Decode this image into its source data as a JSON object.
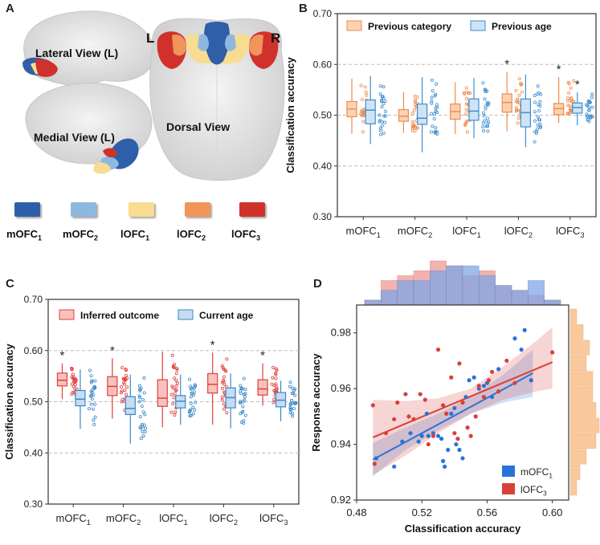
{
  "panels": {
    "a": "A",
    "b": "B",
    "c": "C",
    "d": "D"
  },
  "brain": {
    "lateral_view": "Lateral View (L)",
    "medial_view": "Medial View (L)",
    "dorsal_view": "Dorsal View",
    "left_mark": "L",
    "right_mark": "R",
    "legend": [
      {
        "label": "mOFC",
        "sub": "1",
        "color": "#2f5fa8"
      },
      {
        "label": "mOFC",
        "sub": "2",
        "color": "#8fb8df"
      },
      {
        "label": "lOFC",
        "sub": "1",
        "color": "#f7dc92"
      },
      {
        "label": "lOFC",
        "sub": "2",
        "color": "#f2955a"
      },
      {
        "label": "lOFC",
        "sub": "3",
        "color": "#d0312b"
      }
    ]
  },
  "colors": {
    "orange": "#f08a4b",
    "orange_fill": "#fbd3b3",
    "blue": "#3d8ed0",
    "blue_fill": "#cfe3f5",
    "red": "#e0403a",
    "red_fill": "#f7c2bd",
    "blue2": "#3b88c9",
    "blue2_fill": "#c6dcf0",
    "scatter_blue": "#2a73d6",
    "scatter_red": "#d8403a"
  },
  "chart_data": [
    {
      "panel": "B",
      "type": "box",
      "ylabel": "Classification accuracy",
      "ylim": [
        0.3,
        0.7
      ],
      "yticks": [
        "0.30",
        "0.40",
        "0.50",
        "0.60",
        "0.70"
      ],
      "gridlines": [
        0.4,
        0.5,
        0.6
      ],
      "categories": [
        {
          "name": "mOFC",
          "sub": "1"
        },
        {
          "name": "mOFC",
          "sub": "2"
        },
        {
          "name": "lOFC",
          "sub": "1"
        },
        {
          "name": "lOFC",
          "sub": "2"
        },
        {
          "name": "lOFC",
          "sub": "3"
        }
      ],
      "series": [
        {
          "name": "Previous category",
          "color_key": "orange",
          "boxes": [
            {
              "q1": 0.497,
              "med": 0.512,
              "q3": 0.527,
              "min": 0.463,
              "max": 0.572
            },
            {
              "q1": 0.488,
              "med": 0.498,
              "q3": 0.511,
              "min": 0.465,
              "max": 0.546
            },
            {
              "q1": 0.492,
              "med": 0.507,
              "q3": 0.522,
              "min": 0.463,
              "max": 0.565
            },
            {
              "q1": 0.506,
              "med": 0.525,
              "q3": 0.542,
              "min": 0.468,
              "max": 0.585
            },
            {
              "q1": 0.501,
              "med": 0.513,
              "q3": 0.523,
              "min": 0.485,
              "max": 0.575
            }
          ],
          "stars": [
            false,
            false,
            false,
            true,
            true
          ]
        },
        {
          "name": "Previous age",
          "color_key": "blue",
          "boxes": [
            {
              "q1": 0.483,
              "med": 0.51,
              "q3": 0.53,
              "min": 0.443,
              "max": 0.577
            },
            {
              "q1": 0.482,
              "med": 0.494,
              "q3": 0.522,
              "min": 0.427,
              "max": 0.575
            },
            {
              "q1": 0.49,
              "med": 0.508,
              "q3": 0.532,
              "min": 0.455,
              "max": 0.573
            },
            {
              "q1": 0.477,
              "med": 0.505,
              "q3": 0.532,
              "min": 0.437,
              "max": 0.58
            },
            {
              "q1": 0.504,
              "med": 0.515,
              "q3": 0.524,
              "min": 0.48,
              "max": 0.545
            }
          ],
          "stars": [
            false,
            false,
            false,
            false,
            true
          ]
        }
      ]
    },
    {
      "panel": "C",
      "type": "box",
      "ylabel": "Classification accuracy",
      "ylim": [
        0.3,
        0.7
      ],
      "yticks": [
        "0.30",
        "0.40",
        "0.50",
        "0.60",
        "0.70"
      ],
      "gridlines": [
        0.4,
        0.5,
        0.6
      ],
      "categories": [
        {
          "name": "mOFC",
          "sub": "1"
        },
        {
          "name": "mOFC",
          "sub": "2"
        },
        {
          "name": "lOFC",
          "sub": "1"
        },
        {
          "name": "lOFC",
          "sub": "2"
        },
        {
          "name": "lOFC",
          "sub": "3"
        }
      ],
      "series": [
        {
          "name": "Inferred outcome",
          "color_key": "red",
          "boxes": [
            {
              "q1": 0.531,
              "med": 0.542,
              "q3": 0.556,
              "min": 0.505,
              "max": 0.575
            },
            {
              "q1": 0.512,
              "med": 0.53,
              "q3": 0.549,
              "min": 0.467,
              "max": 0.585
            },
            {
              "q1": 0.491,
              "med": 0.507,
              "q3": 0.543,
              "min": 0.45,
              "max": 0.598
            },
            {
              "q1": 0.517,
              "med": 0.534,
              "q3": 0.555,
              "min": 0.455,
              "max": 0.596
            },
            {
              "q1": 0.513,
              "med": 0.525,
              "q3": 0.543,
              "min": 0.492,
              "max": 0.575
            }
          ],
          "stars": [
            true,
            true,
            false,
            true,
            true
          ]
        },
        {
          "name": "Current age",
          "color_key": "blue2",
          "boxes": [
            {
              "q1": 0.492,
              "med": 0.505,
              "q3": 0.522,
              "min": 0.447,
              "max": 0.563
            },
            {
              "q1": 0.475,
              "med": 0.487,
              "q3": 0.51,
              "min": 0.418,
              "max": 0.553
            },
            {
              "q1": 0.488,
              "med": 0.501,
              "q3": 0.512,
              "min": 0.455,
              "max": 0.553
            },
            {
              "q1": 0.488,
              "med": 0.508,
              "q3": 0.527,
              "min": 0.448,
              "max": 0.555
            },
            {
              "q1": 0.49,
              "med": 0.503,
              "q3": 0.518,
              "min": 0.462,
              "max": 0.541
            }
          ],
          "stars": [
            false,
            false,
            false,
            false,
            false
          ]
        }
      ]
    },
    {
      "panel": "D",
      "type": "scatter",
      "xlabel": "Classification accuracy",
      "ylabel": "Response accuracy",
      "xlim": [
        0.48,
        0.61
      ],
      "ylim": [
        0.92,
        0.99
      ],
      "xticks": [
        "0.48",
        "0.52",
        "0.56",
        "0.60"
      ],
      "yticks": [
        "0.92",
        "0.94",
        "0.96",
        "0.98"
      ],
      "series": [
        {
          "name": "mOFC",
          "sub": "1",
          "color_key": "scatter_blue",
          "fit": {
            "x0": 0.49,
            "y0": 0.9345,
            "x1": 0.588,
            "y1": 0.9655
          },
          "band": [
            [
              0.49,
              0.9285,
              0.9405
            ],
            [
              0.51,
              0.938,
              0.946
            ],
            [
              0.53,
              0.945,
              0.951
            ],
            [
              0.55,
              0.951,
              0.957
            ],
            [
              0.57,
              0.955,
              0.965
            ],
            [
              0.588,
              0.957,
              0.974
            ]
          ],
          "points": [
            [
              0.492,
              0.935
            ],
            [
              0.503,
              0.932
            ],
            [
              0.508,
              0.941
            ],
            [
              0.513,
              0.944
            ],
            [
              0.518,
              0.941
            ],
            [
              0.52,
              0.943
            ],
            [
              0.523,
              0.951
            ],
            [
              0.524,
              0.943
            ],
            [
              0.527,
              0.944
            ],
            [
              0.53,
              0.943
            ],
            [
              0.532,
              0.942
            ],
            [
              0.533,
              0.934
            ],
            [
              0.534,
              0.932
            ],
            [
              0.536,
              0.938
            ],
            [
              0.538,
              0.951
            ],
            [
              0.54,
              0.953
            ],
            [
              0.541,
              0.94
            ],
            [
              0.543,
              0.938
            ],
            [
              0.545,
              0.935
            ],
            [
              0.547,
              0.957
            ],
            [
              0.549,
              0.963
            ],
            [
              0.552,
              0.964
            ],
            [
              0.555,
              0.96
            ],
            [
              0.558,
              0.961
            ],
            [
              0.56,
              0.962
            ],
            [
              0.563,
              0.957
            ],
            [
              0.567,
              0.967
            ],
            [
              0.577,
              0.978
            ],
            [
              0.581,
              0.974
            ],
            [
              0.583,
              0.981
            ],
            [
              0.587,
              0.963
            ]
          ]
        },
        {
          "name": "lOFC",
          "sub": "3",
          "color_key": "scatter_red",
          "fit": {
            "x0": 0.49,
            "y0": 0.9425,
            "x1": 0.6,
            "y1": 0.9695
          },
          "band": [
            [
              0.49,
              0.929,
              0.956
            ],
            [
              0.51,
              0.936,
              0.9555
            ],
            [
              0.53,
              0.944,
              0.9565
            ],
            [
              0.55,
              0.951,
              0.96
            ],
            [
              0.57,
              0.956,
              0.968
            ],
            [
              0.59,
              0.959,
              0.977
            ],
            [
              0.6,
              0.96,
              0.982
            ]
          ],
          "points": [
            [
              0.49,
              0.954
            ],
            [
              0.491,
              0.933
            ],
            [
              0.498,
              0.944
            ],
            [
              0.503,
              0.949
            ],
            [
              0.505,
              0.955
            ],
            [
              0.51,
              0.958
            ],
            [
              0.512,
              0.95
            ],
            [
              0.515,
              0.949
            ],
            [
              0.519,
              0.958
            ],
            [
              0.522,
              0.956
            ],
            [
              0.524,
              0.94
            ],
            [
              0.527,
              0.943
            ],
            [
              0.53,
              0.974
            ],
            [
              0.533,
              0.954
            ],
            [
              0.535,
              0.951
            ],
            [
              0.538,
              0.964
            ],
            [
              0.54,
              0.944
            ],
            [
              0.542,
              0.942
            ],
            [
              0.543,
              0.969
            ],
            [
              0.545,
              0.955
            ],
            [
              0.548,
              0.946
            ],
            [
              0.55,
              0.943
            ],
            [
              0.553,
              0.95
            ],
            [
              0.555,
              0.961
            ],
            [
              0.558,
              0.957
            ],
            [
              0.561,
              0.963
            ],
            [
              0.563,
              0.966
            ],
            [
              0.567,
              0.959
            ],
            [
              0.572,
              0.97
            ],
            [
              0.577,
              0.962
            ],
            [
              0.6,
              0.973
            ]
          ]
        }
      ],
      "hist_x": {
        "bins": 12,
        "red": [
          1,
          5,
          6,
          7,
          9,
          8,
          6,
          7,
          4,
          3,
          2,
          1
        ],
        "blue": [
          1,
          3,
          5,
          5,
          7,
          8,
          8,
          6,
          4,
          3,
          5,
          1
        ]
      },
      "hist_y": {
        "bins": 12,
        "counts": [
          2,
          4,
          6,
          5,
          7,
          7,
          8,
          9,
          8,
          5,
          3,
          2
        ]
      }
    }
  ]
}
